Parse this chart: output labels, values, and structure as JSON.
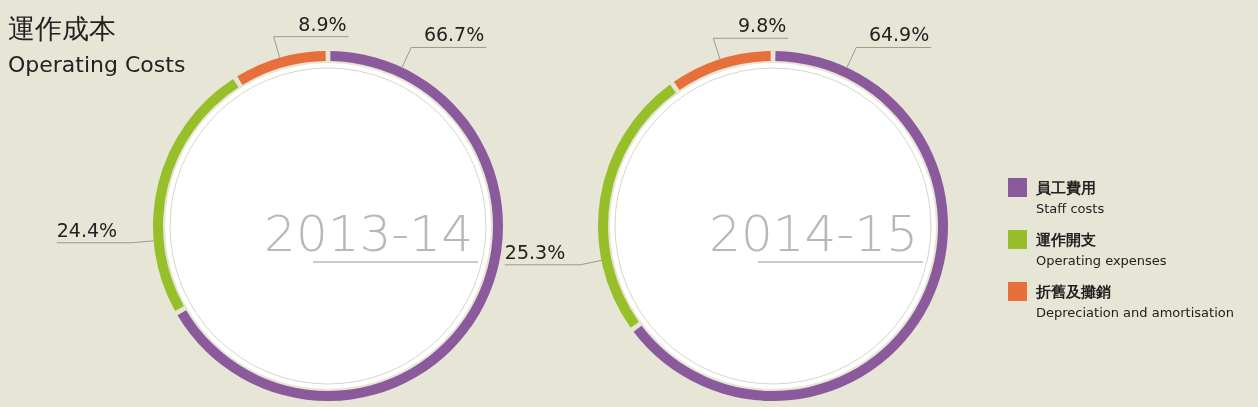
{
  "chart_data": [
    {
      "type": "donut",
      "title": "運作成本",
      "subtitle": "Operating Costs",
      "categories": [
        null,
        null,
        null
      ],
      "values": [
        66.7,
        24.4,
        8.9
      ],
      "colors": [
        "#8b5a9c",
        "#97bf2a",
        "#e66f3b"
      ],
      "value_labels": [
        "66.7%",
        "24.4%",
        "8.9%"
      ],
      "annotations": [
        "2013-14"
      ]
    },
    {
      "type": "donut",
      "categories": [
        "員工費用\nStaff costs",
        "運作開支\nOperating expenses",
        "折舊及攤銷\nDepreciation and amortisation"
      ],
      "values": [
        64.9,
        25.3,
        9.8
      ],
      "colors": [
        "#8b5a9c",
        "#97bf2a",
        "#e66f3b"
      ],
      "value_labels": [
        "64.9%",
        "25.3%",
        "9.8%"
      ],
      "annotations": [
        "2014-15"
      ],
      "legend": "right"
    }
  ]
}
